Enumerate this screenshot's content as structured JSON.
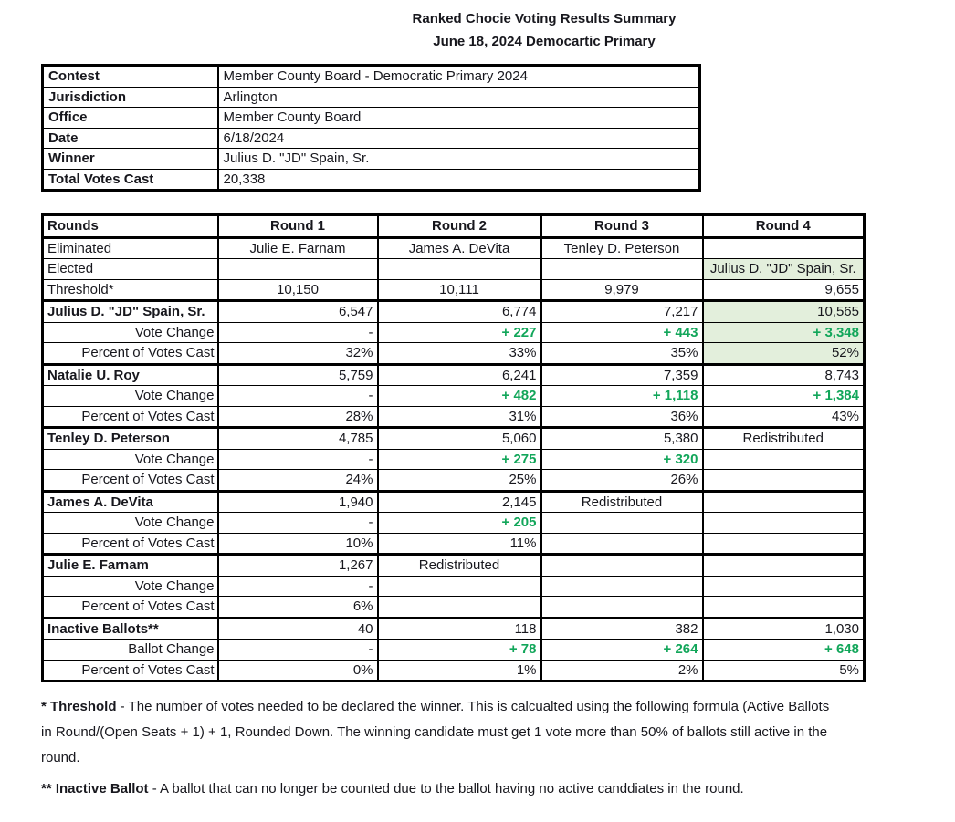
{
  "title": {
    "line1": "Ranked Chocie Voting Results Summary",
    "line2": "June 18, 2024 Democartic Primary"
  },
  "info_table": {
    "rows": [
      {
        "label": "Contest",
        "value": "Member County Board - Democratic Primary 2024"
      },
      {
        "label": "Jurisdiction",
        "value": "Arlington"
      },
      {
        "label": "Office",
        "value": "Member County Board"
      },
      {
        "label": "Date",
        "value": "6/18/2024"
      },
      {
        "label": "Winner",
        "value": "Julius D. \"JD\" Spain, Sr."
      },
      {
        "label": "Total Votes Cast",
        "value": "20,338"
      }
    ]
  },
  "rounds_table": {
    "header": {
      "label": "Rounds",
      "columns": [
        "Round 1",
        "Round 2",
        "Round 3",
        "Round 4"
      ]
    },
    "eliminated": {
      "label": "Eliminated",
      "values": [
        "Julie E. Farnam",
        "James A. DeVita",
        "Tenley D. Peterson",
        ""
      ]
    },
    "elected": {
      "label": "Elected",
      "values": [
        "",
        "",
        "",
        "Julius D. \"JD\" Spain, Sr."
      ]
    },
    "threshold": {
      "label": "Threshold*",
      "values": [
        "10,150",
        "10,111",
        "9,979",
        "9,655"
      ]
    },
    "groups": [
      {
        "name": "Julius D. \"JD\" Spain, Sr.",
        "votes": [
          "6,547",
          "6,774",
          "7,217",
          "10,565"
        ],
        "change_label": "Vote Change",
        "changes": [
          "-",
          "+ 227",
          "+ 443",
          "+ 3,348"
        ],
        "percent_label": "Percent of Votes Cast",
        "percents": [
          "32%",
          "33%",
          "35%",
          "52%"
        ],
        "winner": true
      },
      {
        "name": "Natalie U. Roy",
        "votes": [
          "5,759",
          "6,241",
          "7,359",
          "8,743"
        ],
        "change_label": "Vote Change",
        "changes": [
          "-",
          "+ 482",
          "+ 1,118",
          "+ 1,384"
        ],
        "percent_label": "Percent of Votes Cast",
        "percents": [
          "28%",
          "31%",
          "36%",
          "43%"
        ],
        "winner": false
      },
      {
        "name": "Tenley D. Peterson",
        "votes": [
          "4,785",
          "5,060",
          "5,380",
          "Redistributed"
        ],
        "change_label": "Vote Change",
        "changes": [
          "-",
          "+ 275",
          "+ 320",
          ""
        ],
        "percent_label": "Percent of Votes Cast",
        "percents": [
          "24%",
          "25%",
          "26%",
          ""
        ],
        "winner": false
      },
      {
        "name": "James A. DeVita",
        "votes": [
          "1,940",
          "2,145",
          "Redistributed",
          ""
        ],
        "change_label": "Vote Change",
        "changes": [
          "-",
          "+ 205",
          "",
          ""
        ],
        "percent_label": "Percent of Votes Cast",
        "percents": [
          "10%",
          "11%",
          "",
          ""
        ],
        "winner": false
      },
      {
        "name": "Julie E. Farnam",
        "votes": [
          "1,267",
          "Redistributed",
          "",
          ""
        ],
        "change_label": "Vote Change",
        "changes": [
          "-",
          "",
          "",
          ""
        ],
        "percent_label": "Percent of Votes Cast",
        "percents": [
          "6%",
          "",
          "",
          ""
        ],
        "winner": false
      },
      {
        "name": "Inactive Ballots**",
        "votes": [
          "40",
          "118",
          "382",
          "1,030"
        ],
        "change_label": "Ballot Change",
        "changes": [
          "-",
          "+ 78",
          "+ 264",
          "+ 648"
        ],
        "percent_label": "Percent of Votes Cast",
        "percents": [
          "0%",
          "1%",
          "2%",
          "5%"
        ],
        "winner": false
      }
    ]
  },
  "footnotes": {
    "threshold": {
      "term": "* Threshold",
      "line1": " - The number of votes needed to be declared the winner. This is calcualted using the following formula (Active Ballots",
      "line2": "in Round/(Open Seats + 1) + 1, Rounded Down. The winning candidate must get 1 vote more than 50% of ballots still active in the",
      "line3": "round."
    },
    "inactive": {
      "term": "** Inactive Ballot",
      "text": " - A ballot that can no longer be counted due to the ballot having no active canddiates in the round."
    }
  },
  "colors": {
    "positive_change": "#12a65a",
    "winner_highlight_bg": "#e3efdc",
    "border": "#000000",
    "text": "#17171d"
  }
}
